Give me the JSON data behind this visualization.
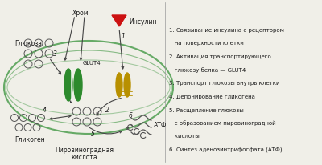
{
  "bg_color": "#f0efe8",
  "legend_items": [
    "1. Связывание инсулина с рецептором",
    "   на поверхности клетки",
    "2. Активация транспортирующего",
    "   глюкозу белка — GLUT4",
    "3. Транспорт глюкозы внутрь клетки",
    "4. Депонирование гликогена",
    "5. Расщепление глюкозы",
    "   с образованием пировиноградной",
    "   кислоты",
    "6. Синтез аденозинтрифосфата (АТФ)"
  ],
  "labels": {
    "hrom": "Хром",
    "insulin": "Инсулин",
    "glut4": "GLUT4",
    "glyukoza": "Глюкоза",
    "glikogen": "Гликоген",
    "pirovin1": "Пировиноградная",
    "pirovin2": "кислота",
    "atf": "АТФ"
  },
  "cell_membrane_color": "#66aa66",
  "glut4_green": "#2d8a2d",
  "glut4_yellow": "#b89000",
  "arrow_color": "#444444",
  "red_triangle": "#cc1111",
  "text_color": "#1a1a1a",
  "divider_color": "#999999"
}
